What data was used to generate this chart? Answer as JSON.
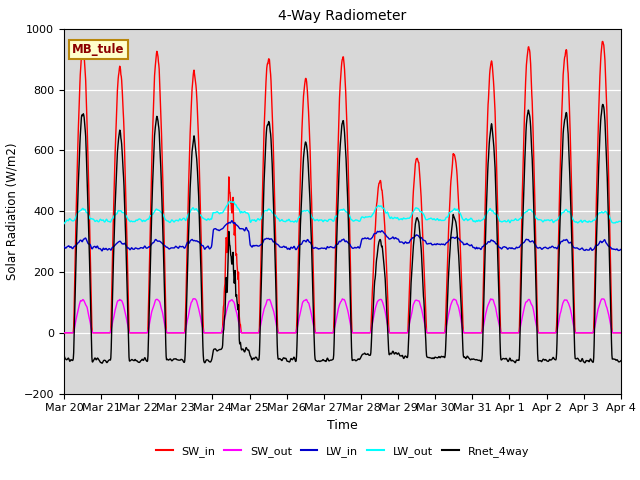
{
  "title": "4-Way Radiometer",
  "xlabel": "Time",
  "ylabel": "Solar Radiation (W/m2)",
  "station_label": "MB_tule",
  "ylim": [
    -200,
    1000
  ],
  "background_color": "#d8d8d8",
  "series": {
    "SW_in": {
      "color": "#ff0000",
      "lw": 1.0,
      "zorder": 3
    },
    "SW_out": {
      "color": "#ff00ff",
      "lw": 1.0,
      "zorder": 3
    },
    "LW_in": {
      "color": "#0000cc",
      "lw": 1.0,
      "zorder": 3
    },
    "LW_out": {
      "color": "#00ffff",
      "lw": 1.0,
      "zorder": 3
    },
    "Rnet_4way": {
      "color": "#000000",
      "lw": 1.0,
      "zorder": 4
    }
  },
  "xtick_labels": [
    "Mar 20",
    "Mar 21",
    "Mar 22",
    "Mar 23",
    "Mar 24",
    "Mar 25",
    "Mar 26",
    "Mar 27",
    "Mar 28",
    "Mar 29",
    "Mar 30",
    "Mar 31",
    "Apr 1",
    "Apr 2",
    "Apr 3",
    "Apr 4"
  ],
  "legend_entries": [
    "SW_in",
    "SW_out",
    "LW_in",
    "LW_out",
    "Rnet_4way"
  ],
  "legend_colors": [
    "#ff0000",
    "#ff00ff",
    "#0000cc",
    "#00ffff",
    "#000000"
  ],
  "sw_in_peaks": [
    940,
    870,
    920,
    855,
    420,
    910,
    830,
    905,
    500,
    580,
    590,
    890,
    940,
    930,
    960
  ],
  "n_days": 15,
  "pts_per_day": 96
}
